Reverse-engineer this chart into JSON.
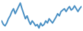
{
  "values": [
    55,
    50,
    48,
    52,
    58,
    62,
    68,
    72,
    65,
    70,
    75,
    80,
    72,
    65,
    58,
    62,
    55,
    50,
    55,
    52,
    48,
    50,
    45,
    52,
    48,
    50,
    55,
    52,
    58,
    55,
    52,
    56,
    60,
    65,
    62,
    68,
    70,
    72,
    68,
    72,
    75,
    70,
    72,
    76,
    72,
    68,
    72,
    75
  ],
  "line_color": "#4a90c4",
  "line_width": 1.5,
  "background_color": "#ffffff"
}
